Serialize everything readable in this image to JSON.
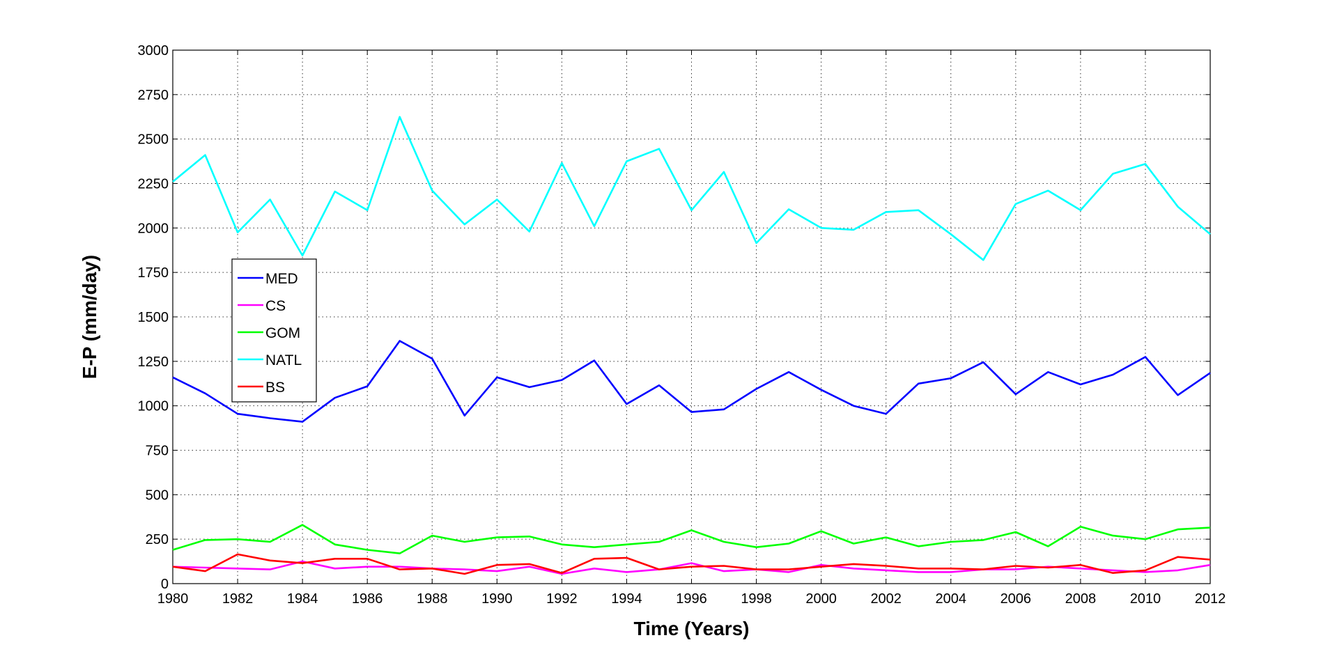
{
  "chart_data": {
    "type": "line",
    "title": "",
    "xlabel": "Time (Years)",
    "ylabel": "E-P (mm/day)",
    "xlim": [
      1980,
      2012
    ],
    "ylim": [
      0,
      3000
    ],
    "xticks": [
      1980,
      1982,
      1984,
      1986,
      1988,
      1990,
      1992,
      1994,
      1996,
      1998,
      2000,
      2002,
      2004,
      2006,
      2008,
      2010,
      2012
    ],
    "yticks": [
      0,
      250,
      500,
      750,
      1000,
      1250,
      1500,
      1750,
      2000,
      2250,
      2500,
      2750,
      3000
    ],
    "grid": true,
    "legend_position": "left",
    "x": [
      1980,
      1981,
      1982,
      1983,
      1984,
      1985,
      1986,
      1987,
      1988,
      1989,
      1990,
      1991,
      1992,
      1993,
      1994,
      1995,
      1996,
      1997,
      1998,
      1999,
      2000,
      2001,
      2002,
      2003,
      2004,
      2005,
      2006,
      2007,
      2008,
      2009,
      2010,
      2011,
      2012
    ],
    "series": [
      {
        "name": "MED",
        "color": "#0000ff",
        "values": [
          1160,
          1070,
          955,
          930,
          910,
          1045,
          1110,
          1365,
          1265,
          945,
          1160,
          1105,
          1145,
          1255,
          1010,
          1115,
          965,
          980,
          1095,
          1190,
          1090,
          1000,
          955,
          1125,
          1155,
          1245,
          1065,
          1190,
          1120,
          1175,
          1275,
          1060,
          1185
        ]
      },
      {
        "name": "CS",
        "color": "#ff00ff",
        "values": [
          95,
          90,
          85,
          80,
          125,
          85,
          95,
          95,
          85,
          80,
          70,
          95,
          55,
          85,
          65,
          80,
          115,
          70,
          80,
          65,
          105,
          85,
          75,
          65,
          65,
          80,
          80,
          95,
          85,
          75,
          65,
          75,
          105
        ]
      },
      {
        "name": "GOM",
        "color": "#00ff00",
        "values": [
          190,
          245,
          250,
          235,
          330,
          220,
          190,
          170,
          270,
          235,
          260,
          265,
          220,
          205,
          220,
          235,
          300,
          235,
          205,
          225,
          295,
          225,
          260,
          210,
          235,
          245,
          290,
          210,
          320,
          270,
          250,
          305,
          315
        ]
      },
      {
        "name": "NATL",
        "color": "#00ffff",
        "values": [
          2260,
          2410,
          1975,
          2160,
          1845,
          2205,
          2100,
          2625,
          2210,
          2020,
          2160,
          1980,
          2365,
          2010,
          2375,
          2445,
          2100,
          2315,
          1915,
          2105,
          2000,
          1990,
          2090,
          2100,
          1965,
          1820,
          2135,
          2210,
          2100,
          2305,
          2360,
          2120,
          1965
        ]
      },
      {
        "name": "BS",
        "color": "#ff0000",
        "values": [
          95,
          70,
          165,
          130,
          115,
          140,
          140,
          80,
          85,
          55,
          105,
          110,
          60,
          140,
          145,
          80,
          95,
          100,
          80,
          80,
          95,
          110,
          100,
          85,
          85,
          80,
          100,
          90,
          105,
          60,
          75,
          150,
          135
        ]
      }
    ]
  }
}
